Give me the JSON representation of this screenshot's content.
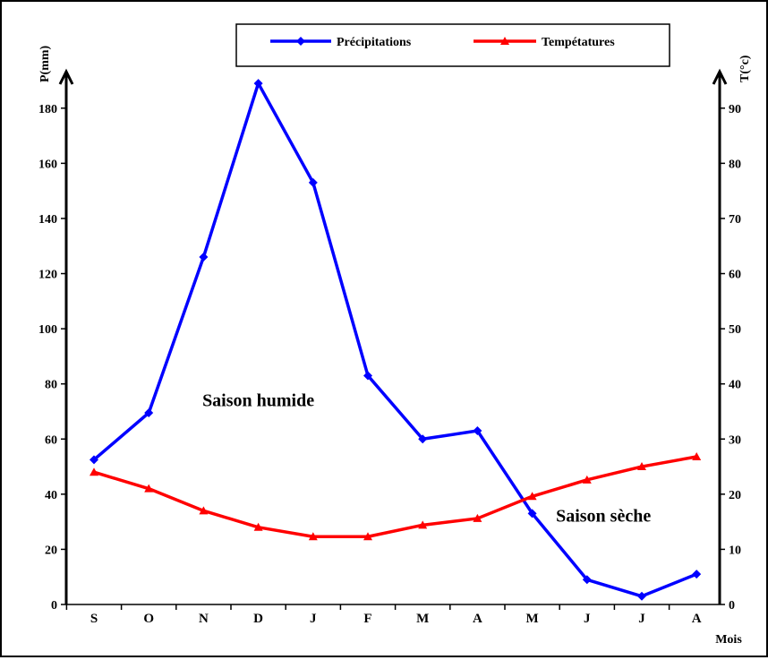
{
  "chart_data": {
    "type": "line",
    "categories": [
      "S",
      "O",
      "N",
      "D",
      "J",
      "F",
      "M",
      "A",
      "M",
      "J",
      "J",
      "A"
    ],
    "xlabel": "Mois",
    "y_left": {
      "label": "P(mm)",
      "ylim": [
        0,
        190
      ],
      "ticks": [
        0,
        20,
        40,
        60,
        80,
        100,
        120,
        140,
        160,
        180
      ]
    },
    "y_right": {
      "label": "T(°c)",
      "ylim": [
        0,
        95
      ],
      "ticks": [
        0,
        10,
        20,
        30,
        40,
        50,
        60,
        70,
        80,
        90
      ]
    },
    "series": [
      {
        "name": "Précipitations",
        "axis": "left",
        "color": "#0000ff",
        "marker": "diamond",
        "values": [
          52.5,
          69.5,
          126,
          189,
          153,
          83,
          60,
          63,
          33,
          9,
          3,
          11
        ]
      },
      {
        "name": "Tempétatures",
        "axis": "right",
        "color": "#ff0000",
        "marker": "triangle",
        "values": [
          24,
          21,
          17,
          14,
          12.3,
          12.3,
          14.4,
          15.6,
          19.6,
          22.6,
          25,
          26.8
        ]
      }
    ],
    "annotations": [
      {
        "text": "Saison humide",
        "x_index": 3,
        "y_left": 72
      },
      {
        "text": "Saison sèche",
        "x_index": 9.3,
        "y_left": 30
      }
    ],
    "legend": {
      "position": "top"
    },
    "grid": false
  }
}
